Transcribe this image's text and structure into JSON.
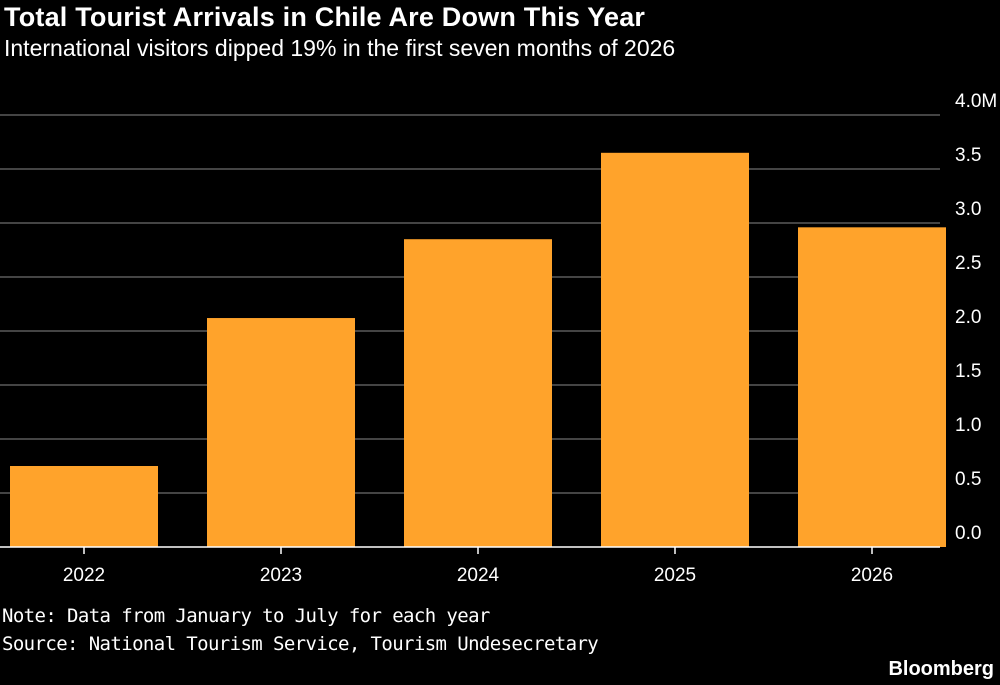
{
  "header": {
    "title": "Total Tourist Arrivals in Chile Are Down This Year",
    "subtitle": "International visitors dipped 19% in the first seven months of 2026"
  },
  "footer": {
    "note": "Note: Data from January to July for each year",
    "source": "Source: National Tourism Service, Tourism Undesecretary",
    "brand": "Bloomberg"
  },
  "colors": {
    "background": "#000000",
    "bar": "#ffa32b",
    "gridline": "#5a5a5a",
    "text": "#ffffff"
  },
  "chart_data": {
    "type": "bar",
    "title": "Total Tourist Arrivals in Chile Are Down This Year",
    "subtitle": "International visitors dipped 19% in the first seven months of 2026",
    "categories": [
      "2022",
      "2023",
      "2024",
      "2025",
      "2026"
    ],
    "values": [
      0.75,
      2.12,
      2.85,
      3.65,
      2.96
    ],
    "ylim": [
      0,
      4.0
    ],
    "yticks": [
      0.0,
      0.5,
      1.0,
      1.5,
      2.0,
      2.5,
      3.0,
      3.5,
      4.0
    ],
    "ytick_labels": [
      "0.0",
      "0.5",
      "1.0",
      "1.5",
      "2.0",
      "2.5",
      "3.0",
      "3.5",
      "4.0M"
    ],
    "y_axis_position": "right",
    "grid": true,
    "legend": "none",
    "xlabel": "",
    "ylabel": ""
  }
}
